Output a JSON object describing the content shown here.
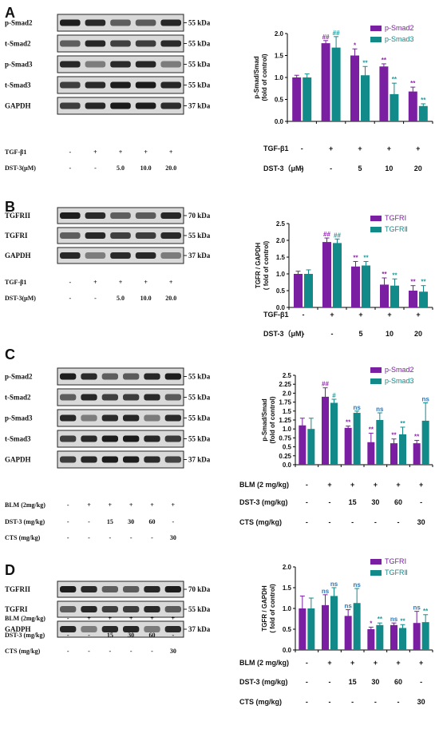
{
  "colors": {
    "purple": "#7B1FA2",
    "teal": "#138A8A",
    "text": "#111111",
    "sig_purple": "#8E24AA",
    "sig_teal": "#1A9A9A",
    "ns_color": "#2E75B6"
  },
  "chart_data": [
    {
      "panel": "A",
      "type": "bar",
      "blot": {
        "labels": [
          "p-Smad2",
          "t-Smad2",
          "p-Smad3",
          "t-Smad3",
          "GAPDH"
        ],
        "kda": [
          "55 kDa",
          "55 kDa",
          "55 kDa",
          "55 kDa",
          "37 kDa"
        ],
        "lanes": 5,
        "rows": [
          {
            "label": "TGF-β1",
            "values": [
              "-",
              "+",
              "+",
              "+",
              "+"
            ]
          },
          {
            "label": "DST-3(μM)",
            "values": [
              "-",
              "-",
              "5.0",
              "10.0",
              "20.0"
            ]
          }
        ]
      },
      "ylabel": "p-Smad/Smad\n(fold of control)",
      "ylim": [
        0,
        2.0
      ],
      "yticks": [
        "0.0",
        "0.5",
        "1.0",
        "1.5",
        "2.0"
      ],
      "series": [
        {
          "name": "p-Smad2",
          "values": [
            1.0,
            1.78,
            1.5,
            1.25,
            0.68
          ],
          "errors": [
            0.05,
            0.06,
            0.15,
            0.06,
            0.1
          ],
          "sig": [
            "",
            "##",
            "*",
            "**",
            "**"
          ]
        },
        {
          "name": "p-Smad3",
          "values": [
            1.0,
            1.68,
            1.05,
            0.62,
            0.35
          ],
          "errors": [
            0.08,
            0.25,
            0.2,
            0.25,
            0.05
          ],
          "sig": [
            "",
            "##",
            "**",
            "**",
            "**"
          ]
        }
      ],
      "table": [
        {
          "label": "TGF-β1",
          "values": [
            "-",
            "+",
            "+",
            "+",
            "+"
          ]
        },
        {
          "label": "DST-3（μM)",
          "values": [
            "-",
            "-",
            "5",
            "10",
            "20"
          ]
        }
      ]
    },
    {
      "panel": "B",
      "type": "bar",
      "blot": {
        "labels": [
          "TGFRII",
          "TGFRI",
          "GAPDH"
        ],
        "kda": [
          "70 kDa",
          "55 kDa",
          "37 kDa"
        ],
        "lanes": 5,
        "rows": [
          {
            "label": "TGF-β1",
            "values": [
              "-",
              "+",
              "+",
              "+",
              "+"
            ]
          },
          {
            "label": "DST-3(μM)",
            "values": [
              "-",
              "-",
              "5.0",
              "10.0",
              "20.0"
            ]
          }
        ]
      },
      "ylabel": "TGFR / GAPDH\n( fold of control)",
      "ylim": [
        0,
        2.5
      ],
      "yticks": [
        "0.0",
        "0.5",
        "1.0",
        "1.5",
        "2.0",
        "2.5"
      ],
      "series": [
        {
          "name": "TGFRⅠ",
          "values": [
            1.0,
            1.95,
            1.22,
            0.68,
            0.5
          ],
          "errors": [
            0.08,
            0.12,
            0.15,
            0.2,
            0.15
          ],
          "sig": [
            "",
            "##",
            "**",
            "**",
            "**"
          ]
        },
        {
          "name": "TGFRⅡ",
          "values": [
            1.0,
            1.92,
            1.25,
            0.65,
            0.47
          ],
          "errors": [
            0.12,
            0.12,
            0.12,
            0.2,
            0.18
          ],
          "sig": [
            "",
            "##",
            "**",
            "**",
            "**"
          ]
        }
      ],
      "table": [
        {
          "label": "TGF-β1",
          "values": [
            "-",
            "+",
            "+",
            "+",
            "+"
          ]
        },
        {
          "label": "DST-3（μM)",
          "values": [
            "-",
            "-",
            "5",
            "10",
            "20"
          ]
        }
      ]
    },
    {
      "panel": "C",
      "type": "bar",
      "blot": {
        "labels": [
          "p-Smad2",
          "t-Smad2",
          "p-Smad3",
          "t-Smad3",
          "GAPDH"
        ],
        "kda": [
          "55 kDa",
          "55 kDa",
          "55 kDa",
          "55 kDa",
          "37 kDa"
        ],
        "lanes": 6,
        "rows": [
          {
            "label": "BLM (2mg/kg)",
            "values": [
              "-",
              "+",
              "+",
              "+",
              "+",
              "+"
            ]
          },
          {
            "label": "DST-3 (mg/kg)",
            "values": [
              "-",
              "-",
              "15",
              "30",
              "60",
              "-"
            ]
          },
          {
            "label": "CTS (mg/kg)",
            "values": [
              "-",
              "-",
              "-",
              "-",
              "-",
              "30"
            ]
          }
        ]
      },
      "ylabel": "p-Smad/Smad\n(fold of control)",
      "ylim": [
        0,
        2.5
      ],
      "yticks": [
        "0.0",
        "0.25",
        "0.5",
        "0.75",
        "1.0",
        "1.25",
        "1.5",
        "1.75",
        "2.0",
        "2.25",
        "2.5"
      ],
      "series": [
        {
          "name": "p-Smad2",
          "values": [
            1.1,
            1.9,
            1.03,
            0.63,
            0.6,
            0.6
          ],
          "errors": [
            0.2,
            0.25,
            0.05,
            0.25,
            0.12,
            0.08
          ],
          "sig": [
            "",
            "##",
            "**",
            "**",
            "**",
            "**"
          ]
        },
        {
          "name": "p-Smad3",
          "values": [
            1.0,
            1.73,
            1.45,
            1.25,
            0.85,
            1.23
          ],
          "errors": [
            0.3,
            0.1,
            0.05,
            0.2,
            0.2,
            0.5
          ],
          "sig": [
            "",
            "#",
            "ns",
            "ns",
            "**",
            "ns"
          ]
        }
      ],
      "table": [
        {
          "label": "BLM (2 mg/kg)",
          "values": [
            "-",
            "+",
            "+",
            "+",
            "+",
            "+"
          ]
        },
        {
          "label": "DST-3 (mg/kg)",
          "values": [
            "-",
            "-",
            "15",
            "30",
            "60",
            "-"
          ]
        },
        {
          "label": "CTS (mg/kg)",
          "values": [
            "-",
            "-",
            "-",
            "-",
            "-",
            "30"
          ]
        }
      ]
    },
    {
      "panel": "D",
      "type": "bar",
      "blot": {
        "labels": [
          "TGFRII",
          "TGFRI",
          "GADPH"
        ],
        "kda": [
          "70 kDa",
          "55 kDa",
          "37 kDa"
        ],
        "lanes": 6,
        "rows": [
          {
            "label": "BLM (2mg/kg)",
            "values": [
              "-",
              "+",
              "+",
              "+",
              "+",
              "+"
            ]
          },
          {
            "label": "DST-3 (mg/kg)",
            "values": [
              "-",
              "-",
              "15",
              "30",
              "60",
              "-"
            ]
          },
          {
            "label": "CTS (mg/kg)",
            "values": [
              "-",
              "-",
              "-",
              "-",
              "-",
              "30"
            ]
          }
        ]
      },
      "ylabel": "TGFR / GAPDH\n( fold of control)",
      "ylim": [
        0,
        2.0
      ],
      "yticks": [
        "0.0",
        "0.5",
        "1.0",
        "1.5",
        "2.0"
      ],
      "series": [
        {
          "name": "TGFRⅠ",
          "values": [
            1.0,
            1.08,
            0.82,
            0.5,
            0.6,
            0.65
          ],
          "errors": [
            0.3,
            0.25,
            0.15,
            0.05,
            0.05,
            0.28
          ],
          "sig": [
            "",
            "ns",
            "ns",
            "*",
            "ns",
            "ns"
          ]
        },
        {
          "name": "TGFRⅡ",
          "values": [
            1.0,
            1.3,
            1.13,
            0.6,
            0.53,
            0.67
          ],
          "errors": [
            0.25,
            0.2,
            0.35,
            0.05,
            0.08,
            0.18
          ],
          "sig": [
            "",
            "ns",
            "ns",
            "**",
            "**",
            "**"
          ]
        }
      ],
      "table": [
        {
          "label": "BLM (2 mg/kg)",
          "values": [
            "-",
            "+",
            "+",
            "+",
            "+",
            "+"
          ]
        },
        {
          "label": "DST-3 (mg/kg)",
          "values": [
            "-",
            "-",
            "15",
            "30",
            "60",
            "-"
          ]
        },
        {
          "label": "CTS (mg/kg)",
          "values": [
            "-",
            "-",
            "-",
            "-",
            "-",
            "30"
          ]
        }
      ]
    }
  ]
}
